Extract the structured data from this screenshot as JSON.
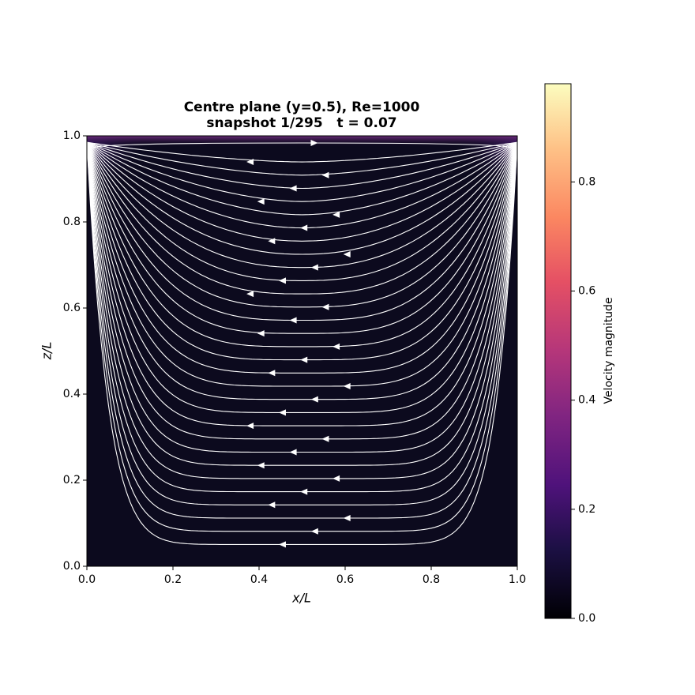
{
  "chart_data": {
    "type": "streamplot",
    "title": [
      "Centre plane (y=0.5), Re=1000",
      "snapshot 1/295   t = 0.07"
    ],
    "xlabel": "x/L",
    "ylabel": "z/L",
    "xlim": [
      0,
      1
    ],
    "ylim": [
      0,
      1
    ],
    "xticks": [
      {
        "value": 0,
        "label": "0.0"
      },
      {
        "value": 0.2,
        "label": "0.2"
      },
      {
        "value": 0.4,
        "label": "0.4"
      },
      {
        "value": 0.6,
        "label": "0.6"
      },
      {
        "value": 0.8,
        "label": "0.8"
      },
      {
        "value": 1,
        "label": "1.0"
      }
    ],
    "yticks": [
      {
        "value": 0,
        "label": "0.0"
      },
      {
        "value": 0.2,
        "label": "0.2"
      },
      {
        "value": 0.4,
        "label": "0.4"
      },
      {
        "value": 0.6,
        "label": "0.6"
      },
      {
        "value": 0.8,
        "label": "0.8"
      },
      {
        "value": 1,
        "label": "1.0"
      }
    ],
    "colorbar": {
      "label": "Velocity magnitude",
      "lim": [
        0,
        0.98
      ],
      "ticks": [
        {
          "value": 0,
          "label": "0.0"
        },
        {
          "value": 0.2,
          "label": "0.2"
        },
        {
          "value": 0.4,
          "label": "0.4"
        },
        {
          "value": 0.6,
          "label": "0.6"
        },
        {
          "value": 0.8,
          "label": "0.8"
        }
      ]
    }
  }
}
